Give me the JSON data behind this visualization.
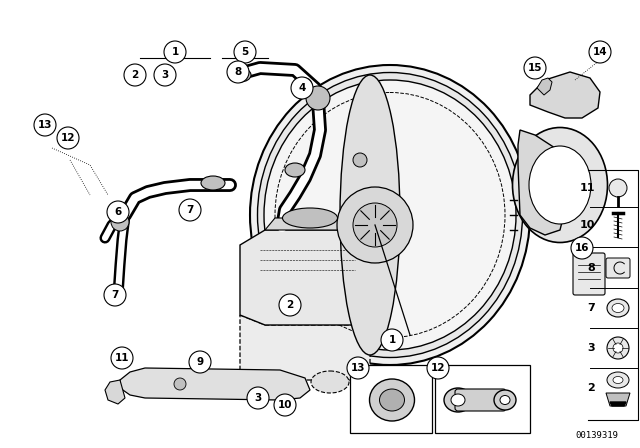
{
  "bg_color": "#ffffff",
  "part_number": "00139319",
  "fig_w": 6.4,
  "fig_h": 4.48,
  "dpi": 100
}
